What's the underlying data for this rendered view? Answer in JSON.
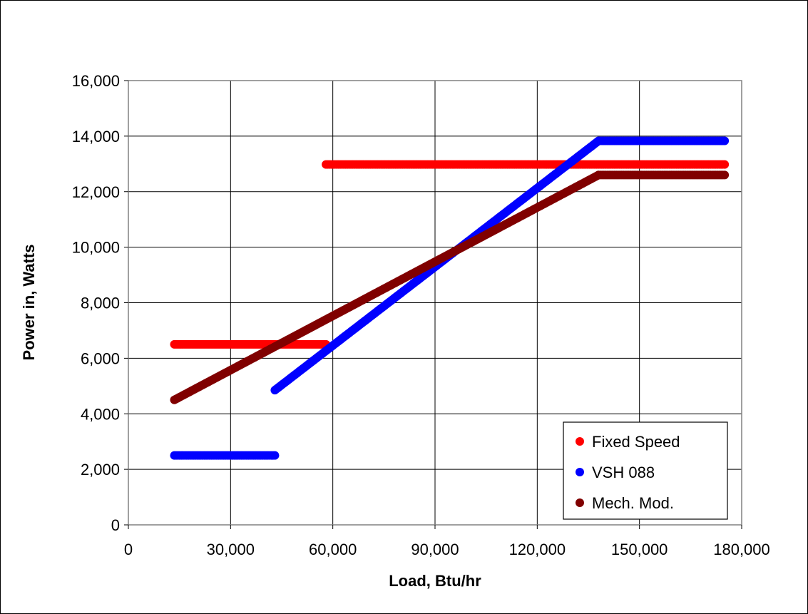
{
  "chart_data": {
    "type": "scatter",
    "xlabel": "Load, Btu/hr",
    "ylabel": "Power in, Watts",
    "xlim": [
      0,
      180000
    ],
    "ylim": [
      0,
      16000
    ],
    "x_ticks": [
      0,
      30000,
      60000,
      90000,
      120000,
      150000,
      180000
    ],
    "x_tick_labels": [
      "0",
      "30,000",
      "60,000",
      "90,000",
      "120,000",
      "150,000",
      "180,000"
    ],
    "y_ticks": [
      0,
      2000,
      4000,
      6000,
      8000,
      10000,
      12000,
      14000,
      16000
    ],
    "y_tick_labels": [
      "0",
      "2,000",
      "4,000",
      "6,000",
      "8,000",
      "10,000",
      "12,000",
      "14,000",
      "16,000"
    ],
    "grid": true,
    "legend_position": "bottom-right",
    "series": [
      {
        "name": "Fixed Speed",
        "color": "#ff0000",
        "segments": [
          {
            "x": [
              13500,
              58000
            ],
            "y": [
              6500,
              6500
            ]
          },
          {
            "x": [
              58000,
              175000
            ],
            "y": [
              12980,
              12980
            ]
          }
        ]
      },
      {
        "name": "VSH 088",
        "color": "#0000ff",
        "segments": [
          {
            "x": [
              13500,
              43000
            ],
            "y": [
              2500,
              2500
            ]
          },
          {
            "x": [
              43000,
              138000
            ],
            "y": [
              4850,
              13830
            ]
          },
          {
            "x": [
              138000,
              175000
            ],
            "y": [
              13830,
              13830
            ]
          }
        ]
      },
      {
        "name": "Mech. Mod.",
        "color": "#800000",
        "segments": [
          {
            "x": [
              13500,
              138000
            ],
            "y": [
              4500,
              12600
            ]
          },
          {
            "x": [
              138000,
              175000
            ],
            "y": [
              12600,
              12600
            ]
          }
        ]
      }
    ]
  }
}
